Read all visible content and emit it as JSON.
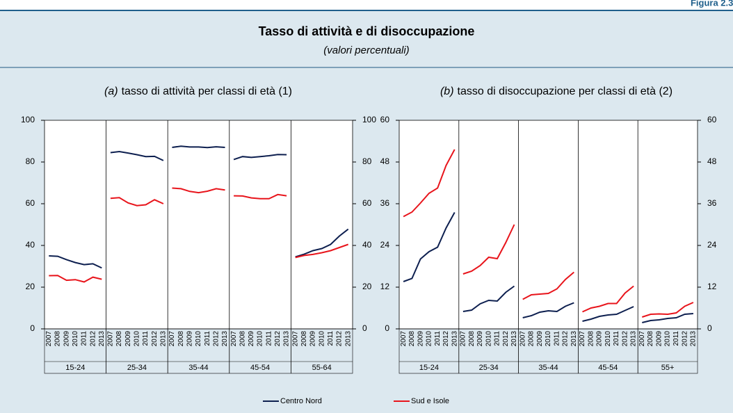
{
  "figure_label": "Figura 2.3.",
  "title": "Tasso di attività e di disoccupazione",
  "subtitle": "(valori percentuali)",
  "legend": [
    {
      "name": "Centro Nord",
      "color": "#0d1f4f"
    },
    {
      "name": "Sud e Isole",
      "color": "#e8141b"
    }
  ],
  "chart_data": [
    {
      "type": "line",
      "title_prefix": "(a)",
      "title": "tasso di attività per classi di età (1)",
      "groups": [
        "15-24",
        "25-34",
        "35-44",
        "45-54",
        "55-64"
      ],
      "categories": [
        "2007",
        "2008",
        "2009",
        "2010",
        "2011",
        "2012",
        "2013"
      ],
      "ylim": [
        0,
        100
      ],
      "yticks": [
        0,
        20,
        40,
        60,
        80,
        100
      ],
      "series": [
        {
          "values": [
            [
              35.0,
              34.8,
              33.2,
              31.8,
              30.8,
              31.2,
              29.2
            ],
            [
              84.5,
              85.0,
              84.3,
              83.5,
              82.6,
              82.7,
              80.7
            ],
            [
              87.0,
              87.6,
              87.2,
              87.2,
              86.9,
              87.3,
              87.0
            ],
            [
              81.2,
              82.6,
              82.2,
              82.6,
              83.0,
              83.6,
              83.5
            ],
            [
              34.5,
              35.8,
              37.5,
              38.5,
              40.5,
              44.5,
              47.8
            ]
          ]
        },
        {
          "values": [
            [
              25.5,
              25.6,
              23.3,
              23.6,
              22.5,
              24.8,
              23.8
            ],
            [
              62.6,
              62.9,
              60.4,
              59.1,
              59.5,
              61.9,
              60.0
            ],
            [
              67.5,
              67.2,
              65.9,
              65.3,
              66.0,
              67.2,
              66.6
            ],
            [
              63.8,
              63.7,
              62.8,
              62.4,
              62.4,
              64.4,
              63.8
            ],
            [
              34.2,
              35.2,
              35.7,
              36.5,
              37.5,
              39.0,
              40.5
            ]
          ]
        }
      ]
    },
    {
      "type": "line",
      "title_prefix": "(b)",
      "title": "tasso di disoccupazione per classi di età (2)",
      "groups": [
        "15-24",
        "25-34",
        "35-44",
        "45-54",
        "55+"
      ],
      "categories": [
        "2007",
        "2008",
        "2009",
        "2010",
        "2011",
        "2012",
        "2013"
      ],
      "ylim": [
        0,
        60
      ],
      "yticks": [
        0,
        12,
        24,
        36,
        48,
        60
      ],
      "series": [
        {
          "values": [
            [
              13.6,
              14.5,
              20.1,
              22.2,
              23.5,
              29.0,
              33.5
            ],
            [
              5.0,
              5.4,
              7.2,
              8.2,
              8.0,
              10.5,
              12.3
            ],
            [
              3.2,
              3.8,
              4.8,
              5.2,
              5.0,
              6.5,
              7.5
            ],
            [
              2.2,
              2.8,
              3.6,
              4.0,
              4.2,
              5.3,
              6.4
            ],
            [
              1.8,
              2.4,
              2.6,
              3.0,
              3.2,
              4.2,
              4.4
            ]
          ]
        },
        {
          "values": [
            [
              32.3,
              33.6,
              36.2,
              39.0,
              40.5,
              47.0,
              51.6
            ],
            [
              15.8,
              16.6,
              18.2,
              20.6,
              20.2,
              24.8,
              30.0
            ],
            [
              8.5,
              9.8,
              10.0,
              10.2,
              11.5,
              14.2,
              16.3
            ],
            [
              4.9,
              6.0,
              6.5,
              7.3,
              7.3,
              10.3,
              12.3
            ],
            [
              3.4,
              4.2,
              4.3,
              4.2,
              4.6,
              6.5,
              7.6
            ]
          ]
        }
      ]
    }
  ]
}
